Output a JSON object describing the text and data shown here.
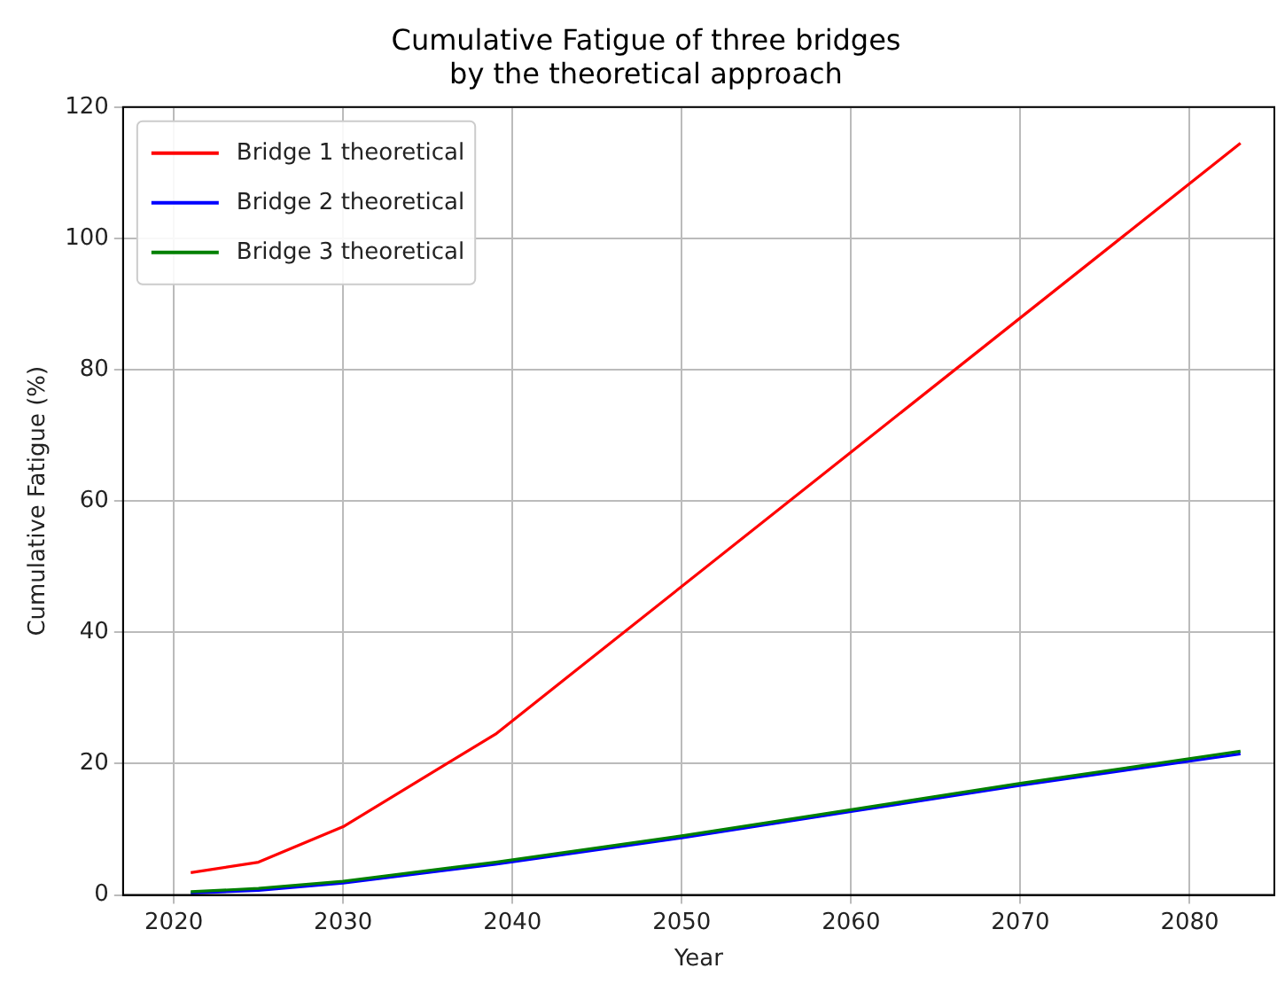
{
  "chart_data": {
    "type": "line",
    "title": "Cumulative Fatigue of three bridges\nby the theoretical approach",
    "xlabel": "Year",
    "ylabel": "Cumulative Fatigue (%)",
    "xlim": [
      2017,
      2085
    ],
    "xticks": [
      2020,
      2030,
      2040,
      2050,
      2060,
      2070,
      2080
    ],
    "ylim": [
      0,
      120
    ],
    "yticks": [
      0,
      20,
      40,
      60,
      80,
      100,
      120
    ],
    "grid": true,
    "legend": "top left",
    "marker": "none",
    "line_style": "solid",
    "series": [
      {
        "name": "Bridge 1 theoretical",
        "color": "#ff0000",
        "x": [
          2021,
          2025,
          2030,
          2039,
          2083
        ],
        "values": [
          3.4,
          5,
          10.4,
          24.5,
          114.5
        ]
      },
      {
        "name": "Bridge 2 theoretical",
        "color": "#0000ff",
        "x": [
          2021,
          2025,
          2030,
          2039,
          2050,
          2060,
          2070,
          2083
        ],
        "values": [
          0.3,
          0.7,
          1.8,
          4.7,
          8.7,
          12.7,
          16.7,
          21.5
        ]
      },
      {
        "name": "Bridge 3 theoretical",
        "color": "#008000",
        "x": [
          2021,
          2025,
          2030,
          2039,
          2050,
          2060,
          2070,
          2083
        ],
        "values": [
          0.5,
          1,
          2.1,
          5,
          9,
          13,
          17,
          21.9
        ]
      }
    ]
  }
}
